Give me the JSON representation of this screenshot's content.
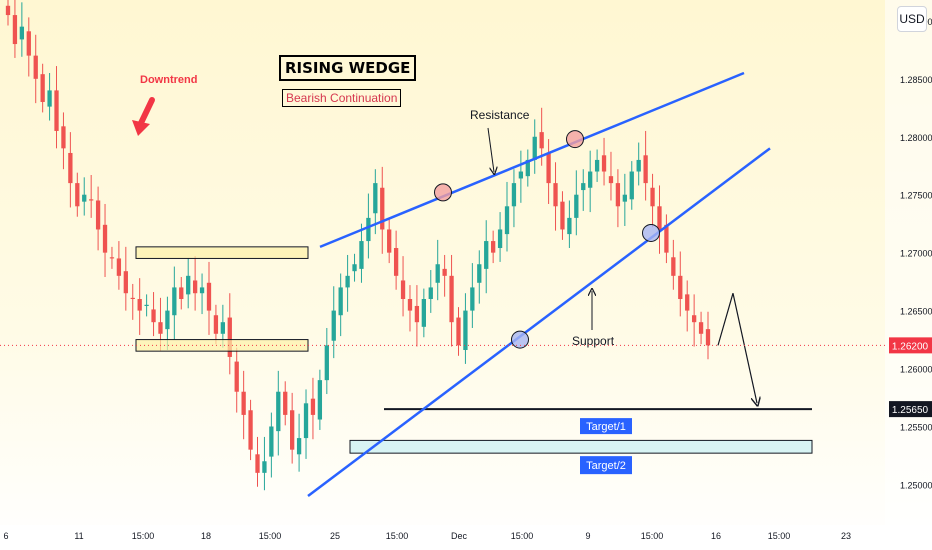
{
  "header": {
    "currency_button": "USD"
  },
  "annotations": {
    "title": "RISING WEDGE",
    "subtitle": "Bearish Continuation",
    "downtrend": "Downtrend",
    "resistance": "Resistance",
    "support": "Support",
    "target1": "Target/1",
    "target2": "Target/2"
  },
  "colors": {
    "up": "#26a69a",
    "down": "#ef5350",
    "trendline": "#2962ff",
    "arrow_red": "#f23645",
    "label_blue": "#2962ff",
    "zone_yellow": "#fdf1a8",
    "zone_cyan": "#d8f4f4",
    "price_tag": "#f23645"
  },
  "chart_data": {
    "type": "candlestick",
    "symbol_quote": "USD",
    "ylim": [
      1.2465,
      1.2918
    ],
    "y_ticks": [
      1.25,
      1.255,
      1.26,
      1.265,
      1.27,
      1.275,
      1.28,
      1.285,
      1.29
    ],
    "y_tick_labels": [
      "1.25000",
      "1.25500",
      "1.26000",
      "1.26500",
      "1.27000",
      "1.27500",
      "1.28000",
      "1.28500",
      "1.29000"
    ],
    "x_tick_labels": [
      "6",
      "11",
      "15:00",
      "18",
      "15:00",
      "25",
      "15:00",
      "Dec",
      "15:00",
      "9",
      "15:00",
      "16",
      "15:00",
      "23"
    ],
    "current_price": {
      "value": 1.262,
      "label": "1.26200"
    },
    "target_price": {
      "value": 1.2565,
      "label": "1.25650"
    },
    "series": [
      {
        "name": "candles",
        "values": [
          1.2905,
          1.288,
          1.2895,
          1.287,
          1.285,
          1.283,
          1.284,
          1.2805,
          1.279,
          1.276,
          1.274,
          1.275,
          1.2745,
          1.272,
          1.27,
          1.2695,
          1.268,
          1.2665,
          1.266,
          1.265,
          1.2655,
          1.264,
          1.263,
          1.265,
          1.267,
          1.266,
          1.268,
          1.2665,
          1.267,
          1.265,
          1.263,
          1.264,
          1.261,
          1.258,
          1.256,
          1.253,
          1.251,
          1.252,
          1.255,
          1.258,
          1.256,
          1.253,
          1.254,
          1.257,
          1.256,
          1.259,
          1.262,
          1.265,
          1.267,
          1.268,
          1.269,
          1.271,
          1.273,
          1.276,
          1.272,
          1.27,
          1.268,
          1.266,
          1.265,
          1.264,
          1.266,
          1.267,
          1.269,
          1.268,
          1.264,
          1.262,
          1.265,
          1.267,
          1.269,
          1.271,
          1.27,
          1.272,
          1.274,
          1.276,
          1.277,
          1.278,
          1.28,
          1.279,
          1.276,
          1.274,
          1.272,
          1.273,
          1.275,
          1.276,
          1.277,
          1.278,
          1.277,
          1.276,
          1.274,
          1.275,
          1.277,
          1.278,
          1.276,
          1.274,
          1.272,
          1.27,
          1.268,
          1.266,
          1.265,
          1.264,
          1.263,
          1.262
        ]
      }
    ],
    "trendlines": [
      {
        "name": "Resistance",
        "from_price": 1.2705,
        "to_price": 1.2855
      },
      {
        "name": "Support",
        "from_price": 1.249,
        "to_price": 1.279
      }
    ],
    "zones": [
      {
        "name": "upper-zone",
        "y_range": [
          1.2695,
          1.2705
        ]
      },
      {
        "name": "lower-zone",
        "y_range": [
          1.2615,
          1.2625
        ]
      },
      {
        "name": "Target/1",
        "value": 1.2565
      },
      {
        "name": "Target/2",
        "y_range": [
          1.2527,
          1.2538
        ]
      }
    ],
    "projection": [
      1.262,
      1.2665,
      1.2565
    ],
    "grid": false,
    "legend": "none"
  }
}
